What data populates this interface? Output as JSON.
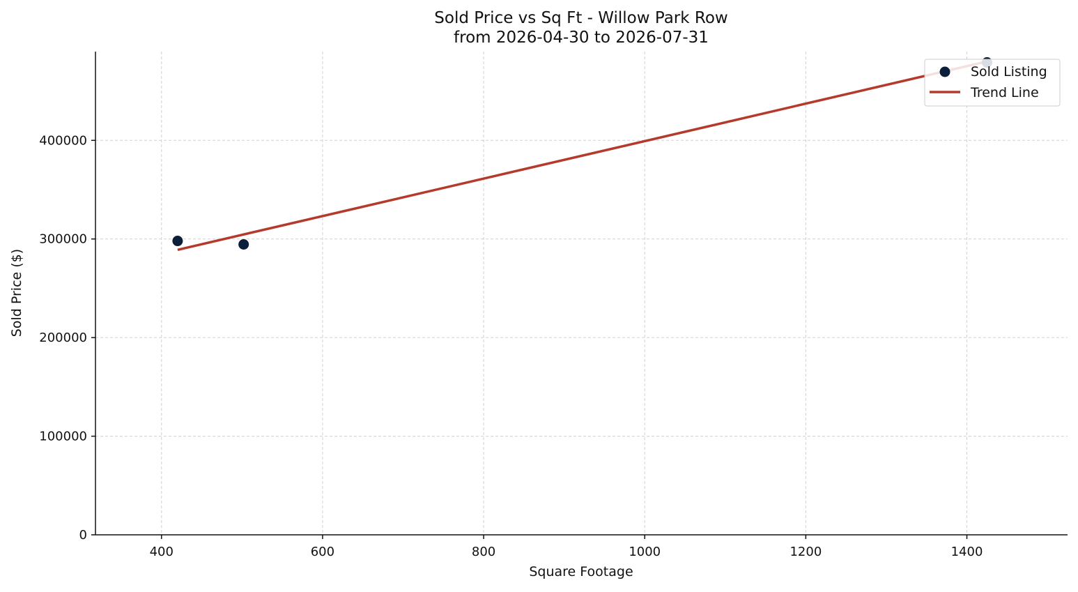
{
  "chart_data": {
    "type": "scatter",
    "title": "Sold Price vs Sq Ft - Willow Park Row",
    "subtitle": "from 2026-04-30 to 2026-07-31",
    "xlabel": "Square Footage",
    "ylabel": "Sold Price ($)",
    "xlim": [
      318,
      1525
    ],
    "ylim": [
      0,
      490000
    ],
    "x_ticks": [
      400,
      600,
      800,
      1000,
      1200,
      1400
    ],
    "y_ticks": [
      0,
      100000,
      200000,
      300000,
      400000
    ],
    "x_tick_labels": [
      "400",
      "600",
      "800",
      "1000",
      "1200",
      "1400"
    ],
    "y_tick_labels": [
      "0",
      "100000",
      "200000",
      "300000",
      "400000"
    ],
    "grid": true,
    "legend_position": "top-right",
    "series": [
      {
        "name": "Sold Listing",
        "kind": "scatter",
        "color": "#0b1f3a",
        "points": [
          {
            "x": 420,
            "y": 298000
          },
          {
            "x": 502,
            "y": 294500
          },
          {
            "x": 1425,
            "y": 479000
          }
        ]
      },
      {
        "name": "Trend Line",
        "kind": "line",
        "color": "#b63a2b",
        "points": [
          {
            "x": 420,
            "y": 289000
          },
          {
            "x": 1425,
            "y": 480000
          }
        ]
      }
    ]
  }
}
